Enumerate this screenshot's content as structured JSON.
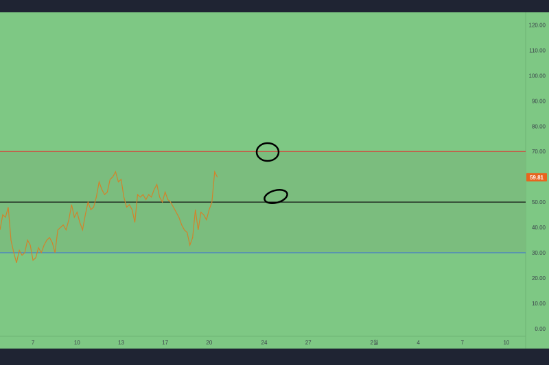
{
  "colors": {
    "chart_background": "#7ec884",
    "frame": "#1f2433",
    "band_fill": "#7bbd7e",
    "price_line": "#d2822a",
    "overbought_line": "#d3463d",
    "middle_line": "#111111",
    "oversold_line": "#3b6fd6",
    "axis_text": "#3a3f4a",
    "price_badge": "#e8641e",
    "annotation": "#000000"
  },
  "price_badge": {
    "value": 59.81,
    "label": "59.81"
  },
  "annotations": [
    {
      "type": "ellipse",
      "name": "circle-on-70-level"
    },
    {
      "type": "ellipse",
      "name": "circle-on-50-level"
    }
  ],
  "chart_data": {
    "type": "line",
    "title": "",
    "xlabel": "",
    "ylabel": "",
    "ylim": [
      -3,
      125
    ],
    "grid": false,
    "legend": "none",
    "y_ticks": [
      "0.00",
      "10.00",
      "20.00",
      "30.00",
      "40.00",
      "50.00",
      "60.00",
      "70.00",
      "80.00",
      "90.00",
      "100.00",
      "110.00",
      "120.00"
    ],
    "x_ticks": [
      {
        "label": "7",
        "idx": 12
      },
      {
        "label": "10",
        "idx": 28
      },
      {
        "label": "13",
        "idx": 44
      },
      {
        "label": "17",
        "idx": 60
      },
      {
        "label": "20",
        "idx": 76
      },
      {
        "label": "24",
        "idx": 96
      },
      {
        "label": "27",
        "idx": 112
      },
      {
        "label": "2월",
        "idx": 136
      },
      {
        "label": "4",
        "idx": 152
      },
      {
        "label": "7",
        "idx": 168
      },
      {
        "label": "10",
        "idx": 184
      }
    ],
    "x_range": [
      0,
      191
    ],
    "levels": [
      {
        "value": 70,
        "color": "#d3463d"
      },
      {
        "value": 50,
        "color": "#111111"
      },
      {
        "value": 30,
        "color": "#3b6fd6"
      }
    ],
    "band": [
      30,
      70
    ],
    "series": [
      {
        "values": [
          39,
          45,
          44,
          48,
          35,
          30,
          26,
          31,
          29,
          30,
          35,
          33,
          27,
          28,
          32,
          30,
          33,
          35,
          36,
          34,
          30,
          39,
          40,
          41,
          39,
          43,
          49,
          44,
          46,
          42,
          39,
          45,
          50,
          47,
          48,
          52,
          58,
          55,
          53,
          54,
          59,
          60,
          62,
          58,
          59,
          52,
          48,
          49,
          47,
          42,
          53,
          52,
          53,
          51,
          53,
          52,
          55,
          57,
          52,
          50,
          54,
          51,
          50,
          48,
          46,
          44,
          41,
          39,
          38,
          33,
          36,
          47,
          39,
          46,
          45,
          43,
          47,
          50,
          62,
          59.81
        ]
      }
    ]
  }
}
